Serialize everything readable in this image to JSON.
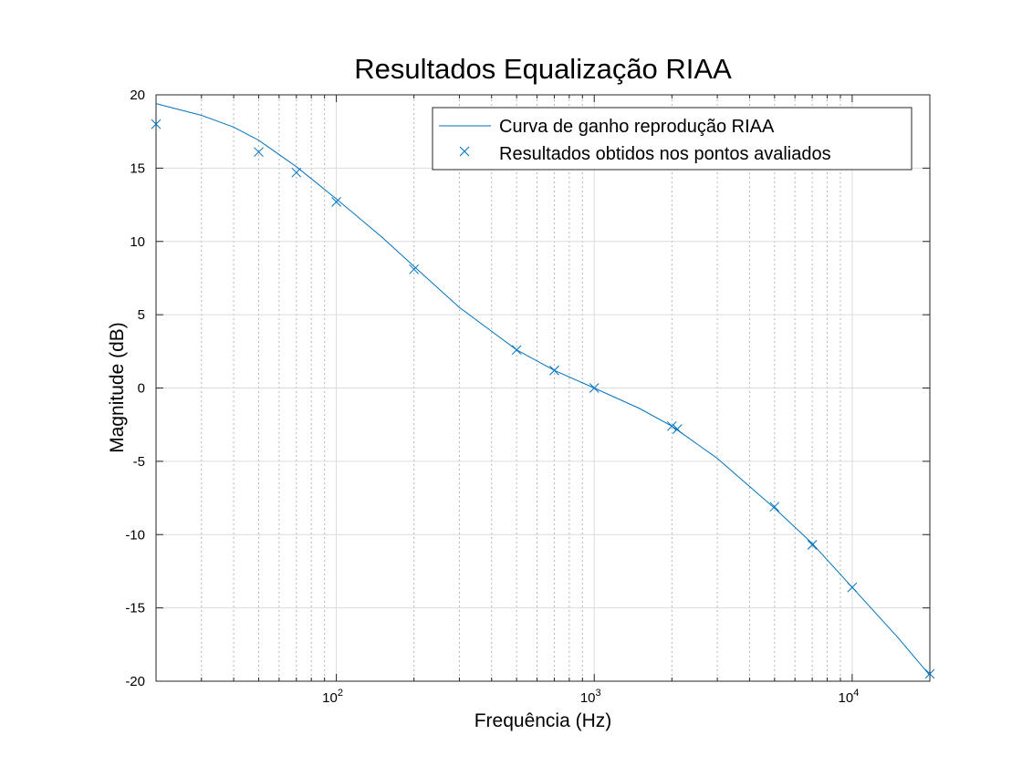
{
  "chart_data": {
    "type": "line",
    "title": "Resultados Equalização RIAA",
    "xlabel": "Frequência  (Hz)",
    "ylabel": "Magnitude (dB)",
    "x_scale": "log",
    "xlim": [
      20,
      20000
    ],
    "ylim": [
      -20,
      20
    ],
    "x_ticks": [
      100,
      1000,
      10000
    ],
    "x_tick_labels": [
      {
        "base": "10",
        "exp": "2"
      },
      {
        "base": "10",
        "exp": "3"
      },
      {
        "base": "10",
        "exp": "4"
      }
    ],
    "y_ticks": [
      -20,
      -15,
      -10,
      -5,
      0,
      5,
      10,
      15,
      20
    ],
    "y_tick_labels": [
      "-20",
      "-15",
      "-10",
      "-5",
      "0",
      "5",
      "10",
      "15",
      "20"
    ],
    "grid": true,
    "legend_position": "top-right",
    "color": "#0072bd",
    "series": [
      {
        "name": "Curva de ganho reprodução RIAA",
        "style": "line",
        "x": [
          20,
          30,
          40,
          50,
          70,
          100,
          150,
          200,
          300,
          500,
          700,
          1000,
          1500,
          2000,
          3000,
          5000,
          7000,
          10000,
          15000,
          20000
        ],
        "y": [
          19.4,
          18.6,
          17.8,
          16.9,
          15.1,
          12.9,
          10.3,
          8.3,
          5.5,
          2.6,
          1.2,
          0.0,
          -1.4,
          -2.6,
          -4.8,
          -8.2,
          -10.6,
          -13.6,
          -17.0,
          -19.6
        ]
      },
      {
        "name": "Resultados obtidos nos pontos avaliados",
        "style": "marker",
        "marker": "x",
        "x": [
          20,
          50,
          70,
          100,
          200,
          500,
          700,
          1000,
          2000,
          2100,
          5000,
          7000,
          10000,
          20000
        ],
        "y": [
          18.0,
          16.1,
          14.7,
          12.7,
          8.1,
          2.6,
          1.2,
          0.0,
          -2.6,
          -2.8,
          -8.1,
          -10.7,
          -13.6,
          -19.5
        ]
      }
    ]
  }
}
